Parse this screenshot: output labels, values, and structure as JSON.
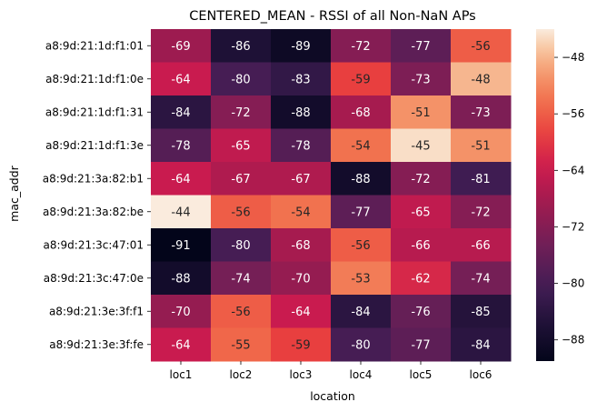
{
  "chart_data": {
    "type": "heatmap",
    "title": "CENTERED_MEAN - RSSI of all Non-NaN APs",
    "xlabel": "location",
    "ylabel": "mac_addr",
    "x": [
      "loc1",
      "loc2",
      "loc3",
      "loc4",
      "loc5",
      "loc6"
    ],
    "y": [
      "a8:9d:21:1d:f1:01",
      "a8:9d:21:1d:f1:0e",
      "a8:9d:21:1d:f1:31",
      "a8:9d:21:1d:f1:3e",
      "a8:9d:21:3a:82:b1",
      "a8:9d:21:3a:82:be",
      "a8:9d:21:3c:47:01",
      "a8:9d:21:3c:47:0e",
      "a8:9d:21:3e:3f:f1",
      "a8:9d:21:3e:3f:fe"
    ],
    "values": [
      [
        -69,
        -86,
        -89,
        -72,
        -77,
        -56
      ],
      [
        -64,
        -80,
        -83,
        -59,
        -73,
        -48
      ],
      [
        -84,
        -72,
        -88,
        -68,
        -51,
        -73
      ],
      [
        -78,
        -65,
        -78,
        -54,
        -45,
        -51
      ],
      [
        -64,
        -67,
        -67,
        -88,
        -72,
        -81
      ],
      [
        -44,
        -56,
        -54,
        -77,
        -65,
        -72
      ],
      [
        -91,
        -80,
        -68,
        -56,
        -66,
        -66
      ],
      [
        -88,
        -74,
        -70,
        -53,
        -62,
        -74
      ],
      [
        -70,
        -56,
        -64,
        -84,
        -76,
        -85
      ],
      [
        -64,
        -55,
        -59,
        -80,
        -77,
        -84
      ]
    ],
    "colorbar": {
      "range": [
        -91,
        -44
      ],
      "ticks": [
        -48,
        -56,
        -64,
        -72,
        -80,
        -88
      ],
      "colormap": "rocket"
    },
    "annotations": "cell values printed in each cell"
  }
}
